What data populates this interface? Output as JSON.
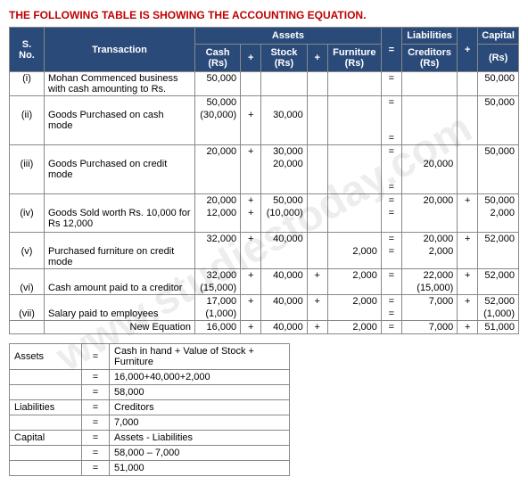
{
  "title": "THE FOLLOWING TABLE IS SHOWING THE ACCOUNTING EQUATION.",
  "watermark": "www.studiestoday.com",
  "headers": {
    "sno": "S. No.",
    "transaction": "Transaction",
    "assets": "Assets",
    "liab": "Liabilities",
    "cap": "Capital",
    "cash": "Cash (Rs)",
    "stock": "Stock (Rs)",
    "furn": "Furniture (Rs)",
    "cred": "Creditors (Rs)",
    "rs": "(Rs)",
    "eq": "=",
    "plus": "+"
  },
  "rows": [
    {
      "sno": "(i)",
      "trans": "Mohan Commenced business with cash amounting to Rs.",
      "cash": "50,000",
      "p1": "",
      "stock": "",
      "p2": "",
      "furn": "",
      "eq": "=",
      "cred": "",
      "p3": "",
      "cap": "50,000"
    },
    {
      "sno": "",
      "trans": "",
      "cash": "50,000",
      "p1": "",
      "stock": "",
      "p2": "",
      "furn": "",
      "eq": "=",
      "cred": "",
      "p3": "",
      "cap": "50,000",
      "top": true
    },
    {
      "sno": "(ii)",
      "trans": "Goods Purchased on cash mode",
      "cash": "(30,000)",
      "p1": "+",
      "stock": "30,000",
      "p2": "",
      "furn": "",
      "eq": "",
      "cred": "",
      "p3": "",
      "cap": ""
    },
    {
      "sno": "",
      "trans": "",
      "cash": "",
      "p1": "",
      "stock": "",
      "p2": "",
      "furn": "",
      "eq": "=",
      "cred": "",
      "p3": "",
      "cap": "",
      "bot": true
    },
    {
      "sno": "",
      "trans": "",
      "cash": "20,000",
      "p1": "+",
      "stock": "30,000",
      "p2": "",
      "furn": "",
      "eq": "=",
      "cred": "",
      "p3": "",
      "cap": "50,000"
    },
    {
      "sno": "(iii)",
      "trans": "Goods Purchased on credit mode",
      "cash": "",
      "p1": "",
      "stock": "20,000",
      "p2": "",
      "furn": "",
      "eq": "",
      "cred": "20,000",
      "p3": "",
      "cap": ""
    },
    {
      "sno": "",
      "trans": "",
      "cash": "",
      "p1": "",
      "stock": "",
      "p2": "",
      "furn": "",
      "eq": "=",
      "cred": "",
      "p3": "",
      "cap": "",
      "bot": true
    },
    {
      "sno": "",
      "trans": "",
      "cash": "20,000",
      "p1": "+",
      "stock": "50,000",
      "p2": "",
      "furn": "",
      "eq": "=",
      "cred": "20,000",
      "p3": "+",
      "cap": "50,000"
    },
    {
      "sno": "(iv)",
      "trans": "Goods Sold worth Rs. 10,000 for Rs 12,000",
      "cash": "12,000",
      "p1": "+",
      "stock": "(10,000)",
      "p2": "",
      "furn": "",
      "eq": "=",
      "cred": "",
      "p3": "",
      "cap": "2,000"
    },
    {
      "sno": "",
      "trans": "",
      "cash": "",
      "p1": "",
      "stock": "",
      "p2": "",
      "furn": "",
      "eq": "",
      "cred": "",
      "p3": "",
      "cap": "",
      "bot": true
    },
    {
      "sno": "",
      "trans": "",
      "cash": "32,000",
      "p1": "+",
      "stock": "40,000",
      "p2": "",
      "furn": "",
      "eq": "=",
      "cred": "20,000",
      "p3": "+",
      "cap": "52,000"
    },
    {
      "sno": "(v)",
      "trans": "Purchased furniture on credit mode",
      "cash": "",
      "p1": "",
      "stock": "",
      "p2": "",
      "furn": "2,000",
      "eq": "=",
      "cred": "2,000",
      "p3": "",
      "cap": ""
    },
    {
      "sno": "",
      "trans": "",
      "cash": "32,000",
      "p1": "+",
      "stock": "40,000",
      "p2": "+",
      "furn": "2,000",
      "eq": "=",
      "cred": "22,000",
      "p3": "+",
      "cap": "52,000",
      "top": true
    },
    {
      "sno": "(vi)",
      "trans": "Cash amount paid to a creditor",
      "cash": "(15,000)",
      "p1": "",
      "stock": "",
      "p2": "",
      "furn": "",
      "eq": "",
      "cred": "(15,000)",
      "p3": "",
      "cap": "",
      "bot": true
    },
    {
      "sno": "",
      "trans": "",
      "cash": "17,000",
      "p1": "+",
      "stock": "40,000",
      "p2": "+",
      "furn": "2,000",
      "eq": "=",
      "cred": "7,000",
      "p3": "+",
      "cap": "52,000"
    },
    {
      "sno": "(vii)",
      "trans": "Salary paid to employees",
      "cash": "(1,000)",
      "p1": "",
      "stock": "",
      "p2": "",
      "furn": "",
      "eq": "=",
      "cred": "",
      "p3": "",
      "cap": "(1,000)",
      "bot": true
    },
    {
      "sno": "",
      "trans": "New Equation",
      "cash": "16,000",
      "p1": "+",
      "stock": "40,000",
      "p2": "+",
      "furn": "2,000",
      "eq": "=",
      "cred": "7,000",
      "p3": "+",
      "cap": "51,000",
      "bot": true,
      "transRight": true
    }
  ],
  "summary": [
    {
      "lbl": "Assets",
      "eq": "=",
      "val": "Cash in hand + Value of Stock + Furniture"
    },
    {
      "lbl": "",
      "eq": "=",
      "val": "16,000+40,000+2,000"
    },
    {
      "lbl": "",
      "eq": "=",
      "val": "58,000"
    },
    {
      "lbl": "Liabilities",
      "eq": "=",
      "val": "Creditors"
    },
    {
      "lbl": "",
      "eq": "=",
      "val": "7,000"
    },
    {
      "lbl": "Capital",
      "eq": "=",
      "val": "Assets - Liabilities"
    },
    {
      "lbl": "",
      "eq": "=",
      "val": "58,000 – 7,000"
    },
    {
      "lbl": "",
      "eq": "=",
      "val": "51,000"
    }
  ]
}
